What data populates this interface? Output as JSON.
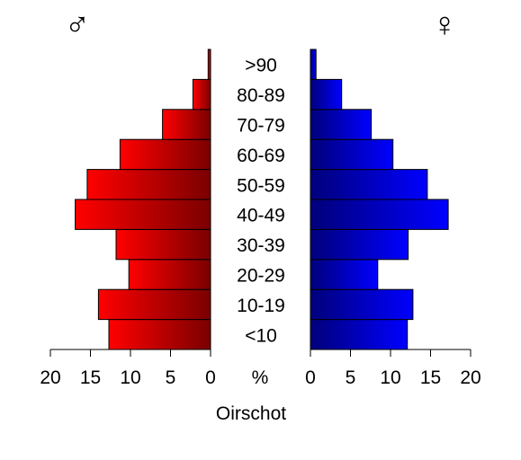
{
  "chart_data": {
    "type": "bar",
    "title": "Oirschot",
    "unit": "%",
    "categories": [
      "<10",
      "10-19",
      "20-29",
      "30-39",
      "40-49",
      "50-59",
      "60-69",
      "70-79",
      "80-89",
      ">90"
    ],
    "series": [
      {
        "name": "♂",
        "side": "left",
        "values": [
          12.7,
          14.0,
          10.2,
          11.8,
          16.9,
          15.4,
          11.3,
          6.0,
          2.2,
          0.3
        ],
        "color_light": "#ff0000",
        "color_dark": "#7a0000"
      },
      {
        "name": "♀",
        "side": "right",
        "values": [
          12.1,
          12.8,
          8.4,
          12.2,
          17.2,
          14.6,
          10.3,
          7.6,
          3.9,
          0.7
        ],
        "color_light": "#0000ff",
        "color_dark": "#00007a"
      }
    ],
    "xlim": [
      0,
      20
    ],
    "xticks": [
      "20",
      "15",
      "10",
      "5",
      "0"
    ],
    "xticks_right": [
      "0",
      "5",
      "10",
      "15",
      "20"
    ]
  }
}
